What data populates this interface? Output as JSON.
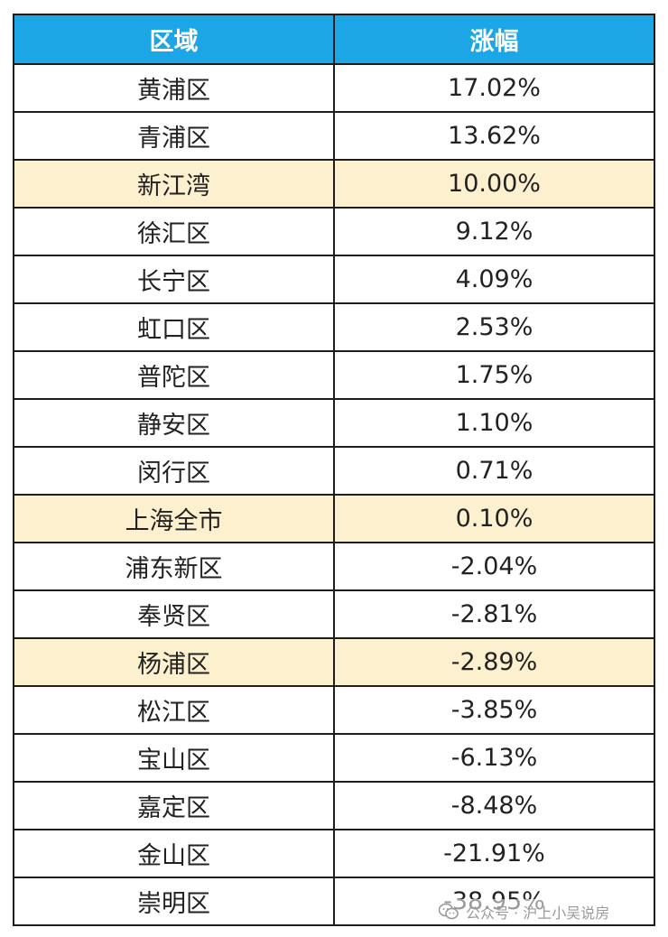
{
  "chart_data": {
    "type": "table",
    "columns": [
      "区域",
      "涨幅"
    ],
    "rows": [
      {
        "region": "黄浦区",
        "change": "17.02%",
        "value": 17.02,
        "highlight": false
      },
      {
        "region": "青浦区",
        "change": "13.62%",
        "value": 13.62,
        "highlight": false
      },
      {
        "region": "新江湾",
        "change": "10.00%",
        "value": 10.0,
        "highlight": true
      },
      {
        "region": "徐汇区",
        "change": "9.12%",
        "value": 9.12,
        "highlight": false
      },
      {
        "region": "长宁区",
        "change": "4.09%",
        "value": 4.09,
        "highlight": false
      },
      {
        "region": "虹口区",
        "change": "2.53%",
        "value": 2.53,
        "highlight": false
      },
      {
        "region": "普陀区",
        "change": "1.75%",
        "value": 1.75,
        "highlight": false
      },
      {
        "region": "静安区",
        "change": "1.10%",
        "value": 1.1,
        "highlight": false
      },
      {
        "region": "闵行区",
        "change": "0.71%",
        "value": 0.71,
        "highlight": false
      },
      {
        "region": "上海全市",
        "change": "0.10%",
        "value": 0.1,
        "highlight": true
      },
      {
        "region": "浦东新区",
        "change": "-2.04%",
        "value": -2.04,
        "highlight": false
      },
      {
        "region": "奉贤区",
        "change": "-2.81%",
        "value": -2.81,
        "highlight": false
      },
      {
        "region": "杨浦区",
        "change": "-2.89%",
        "value": -2.89,
        "highlight": true
      },
      {
        "region": "松江区",
        "change": "-3.85%",
        "value": -3.85,
        "highlight": false
      },
      {
        "region": "宝山区",
        "change": "-6.13%",
        "value": -6.13,
        "highlight": false
      },
      {
        "region": "嘉定区",
        "change": "-8.48%",
        "value": -8.48,
        "highlight": false
      },
      {
        "region": "金山区",
        "change": "-21.91%",
        "value": -21.91,
        "highlight": false
      },
      {
        "region": "崇明区",
        "change": "-38.95%",
        "value": -38.95,
        "highlight": false
      }
    ]
  },
  "colors": {
    "header_bg": "#1da6e6",
    "header_text": "#ffffff",
    "highlight_bg": "#fdf0cf",
    "border": "#1d1d1d"
  },
  "watermark": {
    "text": "公众号 · 沪上小吴说房",
    "icon": "wechat-official-account-icon"
  }
}
